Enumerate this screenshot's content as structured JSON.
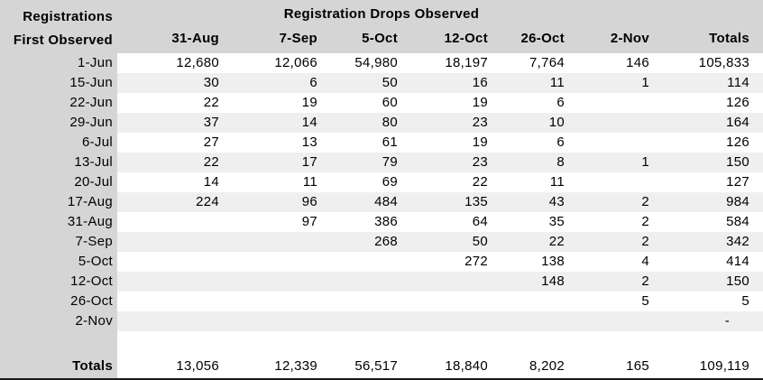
{
  "chart_data": {
    "type": "table",
    "title": "Registration Drops Observed",
    "row_header_title_line1": "Registrations",
    "row_header_title_line2": "First Observed",
    "columns": [
      "31-Aug",
      "7-Sep",
      "5-Oct",
      "12-Oct",
      "26-Oct",
      "2-Nov",
      "Totals"
    ],
    "rows": [
      {
        "label": "1-Jun",
        "values": [
          "12,680",
          "12,066",
          "54,980",
          "18,197",
          "7,764",
          "146",
          "105,833"
        ]
      },
      {
        "label": "15-Jun",
        "values": [
          "30",
          "6",
          "50",
          "16",
          "11",
          "1",
          "114"
        ]
      },
      {
        "label": "22-Jun",
        "values": [
          "22",
          "19",
          "60",
          "19",
          "6",
          "",
          "126"
        ]
      },
      {
        "label": "29-Jun",
        "values": [
          "37",
          "14",
          "80",
          "23",
          "10",
          "",
          "164"
        ]
      },
      {
        "label": "6-Jul",
        "values": [
          "27",
          "13",
          "61",
          "19",
          "6",
          "",
          "126"
        ]
      },
      {
        "label": "13-Jul",
        "values": [
          "22",
          "17",
          "79",
          "23",
          "8",
          "1",
          "150"
        ]
      },
      {
        "label": "20-Jul",
        "values": [
          "14",
          "11",
          "69",
          "22",
          "11",
          "",
          "127"
        ]
      },
      {
        "label": "17-Aug",
        "values": [
          "224",
          "96",
          "484",
          "135",
          "43",
          "2",
          "984"
        ]
      },
      {
        "label": "31-Aug",
        "values": [
          "",
          "97",
          "386",
          "64",
          "35",
          "2",
          "584"
        ]
      },
      {
        "label": "7-Sep",
        "values": [
          "",
          "",
          "268",
          "50",
          "22",
          "2",
          "342"
        ]
      },
      {
        "label": "5-Oct",
        "values": [
          "",
          "",
          "",
          "272",
          "138",
          "4",
          "414"
        ]
      },
      {
        "label": "12-Oct",
        "values": [
          "",
          "",
          "",
          "",
          "148",
          "2",
          "150"
        ]
      },
      {
        "label": "26-Oct",
        "values": [
          "",
          "",
          "",
          "",
          "",
          "5",
          "5"
        ]
      },
      {
        "label": "2-Nov",
        "values": [
          "",
          "",
          "",
          "",
          "",
          "",
          "-"
        ]
      }
    ],
    "totals_row": {
      "label": "Totals",
      "values": [
        "13,056",
        "12,339",
        "56,517",
        "18,840",
        "8,202",
        "165",
        "109,119"
      ]
    }
  },
  "colors": {
    "header_bg": "#d5d5d5",
    "label_col_bg": "#d5d5d5",
    "stripe_bg": "#efefef",
    "text": "#000000",
    "bottom_border": "#1a1a1a"
  }
}
